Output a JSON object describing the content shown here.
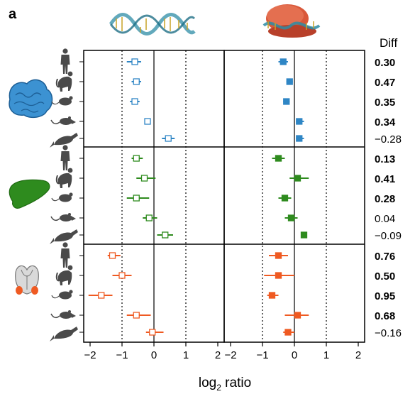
{
  "panel_label": "a",
  "diff_header": "Diff",
  "axis_label": {
    "main": "log",
    "sub": "2",
    "rest": " ratio"
  },
  "tick_labels": [
    "−2",
    "−1",
    "0",
    "1",
    "2"
  ],
  "colors": {
    "brain": "#2f86c5",
    "liver": "#2e8b1e",
    "testis": "#ef5a22",
    "grey": "#4a4a4a"
  },
  "icons": {
    "top": [
      "rna-strand-icon",
      "ribosome-rna-icon"
    ],
    "tissues": [
      "brain-icon",
      "liver-icon",
      "testis-icon"
    ],
    "species": [
      "human-icon",
      "macaque-icon",
      "mouse-icon",
      "opossum-icon",
      "platypus-icon"
    ]
  },
  "chart_data": {
    "type": "forest",
    "x_axis": {
      "label": "log2 ratio",
      "lim": [
        -2.2,
        2.2
      ],
      "ticks": [
        -2,
        -1,
        0,
        1,
        2
      ],
      "dotted_reference_lines": [
        -1,
        1
      ],
      "solid_reference_line": 0
    },
    "columns": [
      "open",
      "filled"
    ],
    "groups": [
      {
        "tissue": "brain",
        "color": "#2f86c5",
        "open": [
          {
            "v": -0.6,
            "lo": -0.85,
            "hi": -0.4
          },
          {
            "v": -0.55,
            "lo": -0.7,
            "hi": -0.4
          },
          {
            "v": -0.6,
            "lo": -0.75,
            "hi": -0.45
          },
          {
            "v": -0.2,
            "lo": -0.3,
            "hi": -0.1
          },
          {
            "v": 0.45,
            "lo": 0.25,
            "hi": 0.65
          }
        ],
        "filled": [
          {
            "v": -0.35,
            "lo": -0.5,
            "hi": -0.2
          },
          {
            "v": -0.15,
            "lo": -0.25,
            "hi": -0.05
          },
          {
            "v": -0.25,
            "lo": -0.35,
            "hi": -0.15
          },
          {
            "v": 0.15,
            "lo": 0.05,
            "hi": 0.3
          },
          {
            "v": 0.15,
            "lo": 0.05,
            "hi": 0.3
          }
        ],
        "diff": [
          {
            "text": "0.30",
            "bold": true
          },
          {
            "text": "0.47",
            "bold": true
          },
          {
            "text": "0.35",
            "bold": true
          },
          {
            "text": "0.34",
            "bold": true
          },
          {
            "text": "−0.28",
            "bold": false
          }
        ]
      },
      {
        "tissue": "liver",
        "color": "#2e8b1e",
        "open": [
          {
            "v": -0.55,
            "lo": -0.7,
            "hi": -0.35
          },
          {
            "v": -0.3,
            "lo": -0.55,
            "hi": 0.05
          },
          {
            "v": -0.55,
            "lo": -0.85,
            "hi": -0.15
          },
          {
            "v": -0.15,
            "lo": -0.35,
            "hi": 0.1
          },
          {
            "v": 0.35,
            "lo": 0.1,
            "hi": 0.6
          }
        ],
        "filled": [
          {
            "v": -0.5,
            "lo": -0.7,
            "hi": -0.3
          },
          {
            "v": 0.1,
            "lo": -0.15,
            "hi": 0.45
          },
          {
            "v": -0.3,
            "lo": -0.5,
            "hi": -0.1
          },
          {
            "v": -0.1,
            "lo": -0.3,
            "hi": 0.1
          },
          {
            "v": 0.3,
            "lo": 0.2,
            "hi": 0.4
          }
        ],
        "diff": [
          {
            "text": "0.13",
            "bold": true
          },
          {
            "text": "0.41",
            "bold": true
          },
          {
            "text": "0.28",
            "bold": true
          },
          {
            "text": "0.04",
            "bold": false
          },
          {
            "text": "−0.09",
            "bold": false
          }
        ]
      },
      {
        "tissue": "testis",
        "color": "#ef5a22",
        "open": [
          {
            "v": -1.3,
            "lo": -1.45,
            "hi": -1.05
          },
          {
            "v": -1.0,
            "lo": -1.3,
            "hi": -0.7
          },
          {
            "v": -1.65,
            "lo": -2.05,
            "hi": -1.3
          },
          {
            "v": -0.55,
            "lo": -0.85,
            "hi": -0.1
          },
          {
            "v": -0.05,
            "lo": -0.25,
            "hi": 0.3
          }
        ],
        "filled": [
          {
            "v": -0.5,
            "lo": -0.8,
            "hi": -0.2
          },
          {
            "v": -0.5,
            "lo": -0.95,
            "hi": 0.0
          },
          {
            "v": -0.7,
            "lo": -0.85,
            "hi": -0.5
          },
          {
            "v": 0.1,
            "lo": -0.3,
            "hi": 0.45
          },
          {
            "v": -0.2,
            "lo": -0.35,
            "hi": 0.0
          }
        ],
        "diff": [
          {
            "text": "0.76",
            "bold": true
          },
          {
            "text": "0.50",
            "bold": true
          },
          {
            "text": "0.95",
            "bold": true
          },
          {
            "text": "0.68",
            "bold": true
          },
          {
            "text": "−0.16",
            "bold": false
          }
        ]
      }
    ]
  }
}
